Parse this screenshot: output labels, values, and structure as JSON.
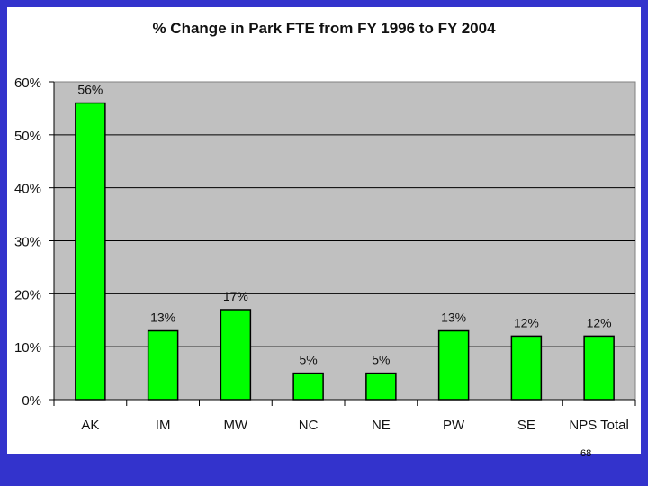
{
  "background_color": "#3333cc",
  "page_number": "68",
  "chart_data": {
    "type": "bar",
    "title": "% Change in Park FTE from FY 1996 to FY 2004",
    "categories": [
      "AK",
      "IM",
      "MW",
      "NC",
      "NE",
      "PW",
      "SE",
      "NPS Total"
    ],
    "values": [
      56,
      13,
      17,
      5,
      5,
      13,
      12,
      12
    ],
    "data_labels": [
      "56%",
      "13%",
      "17%",
      "5%",
      "5%",
      "13%",
      "12%",
      "12%"
    ],
    "y_ticks": [
      "0%",
      "10%",
      "20%",
      "30%",
      "40%",
      "50%",
      "60%"
    ],
    "ylim": [
      0,
      60
    ],
    "grid": true,
    "legend": "none",
    "bar_color": "#00ff00",
    "plot_background": "#c0c0c0",
    "xlabel": "",
    "ylabel": ""
  }
}
